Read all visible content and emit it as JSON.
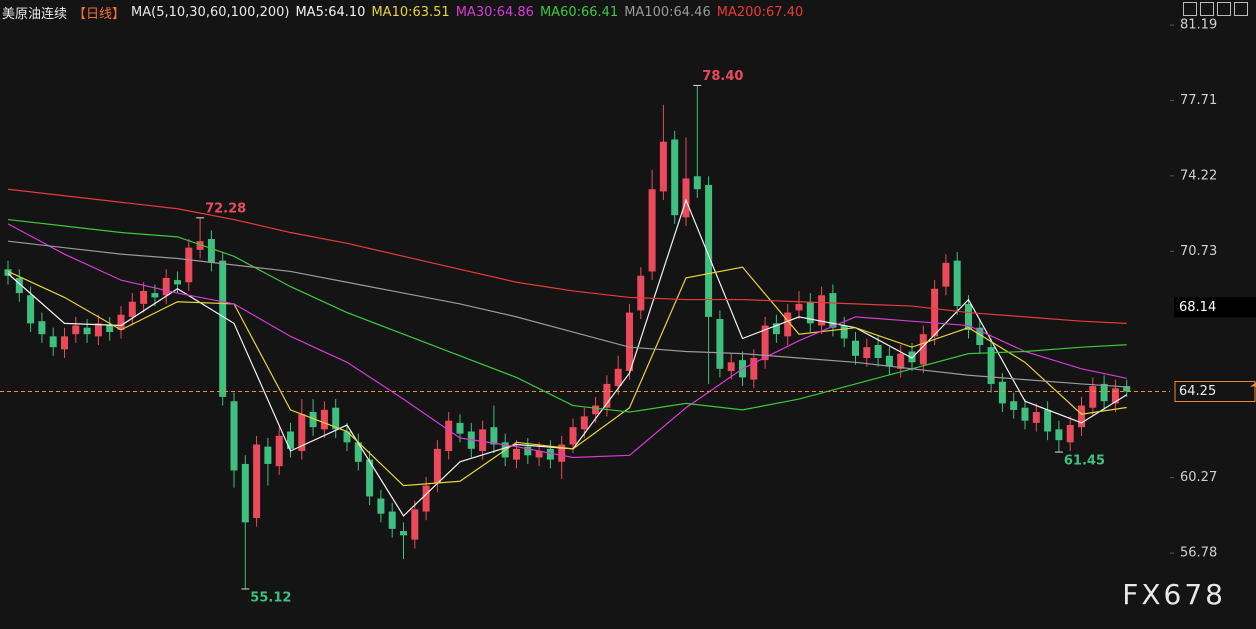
{
  "chart_data": {
    "type": "candlestick",
    "title": "美原油连续",
    "period": "【日线】",
    "indicator": "MA(5,10,30,60,100,200)",
    "watermark": "FX678",
    "up_color": "#ea4a5c",
    "down_color": "#3fbf80",
    "ylim": [
      53.27,
      82.35
    ],
    "yticks": [
      81.19,
      77.71,
      74.22,
      70.73,
      60.27,
      56.78
    ],
    "marker_price": 68.14,
    "last_price": 64.25,
    "last_price_color": "#f08a2a",
    "open": [
      69.9,
      69.5,
      68.7,
      67.5,
      66.8,
      66.2,
      66.9,
      67.2,
      66.8,
      67.3,
      67.1,
      67.7,
      68.3,
      68.8,
      68.7,
      69.4,
      69.3,
      70.8,
      71.3,
      70.3,
      63.8,
      60.9,
      58.4,
      61.7,
      60.8,
      62.4,
      61.5,
      63.3,
      62.5,
      63.5,
      62.4,
      61.9,
      61.1,
      59.3,
      58.7,
      57.8,
      57.4,
      58.7,
      60.0,
      61.5,
      62.8,
      62.4,
      61.5,
      62.6,
      61.9,
      61.1,
      61.7,
      61.2,
      61.6,
      61.0,
      61.8,
      62.5,
      63.2,
      63.5,
      64.5,
      65.2,
      68.0,
      69.8,
      73.5,
      75.9,
      72.3,
      74.2,
      73.8,
      67.6,
      65.2,
      65.7,
      64.8,
      65.7,
      67.4,
      66.8,
      68.0,
      68.4,
      67.3,
      68.8,
      67.3,
      66.6,
      65.8,
      66.4,
      65.9,
      65.3,
      66.1,
      65.5,
      66.8,
      69.1,
      70.3,
      68.3,
      67.2,
      66.3,
      64.7,
      63.8,
      63.5,
      62.8,
      63.4,
      62.5,
      61.9,
      62.6,
      63.5,
      64.6,
      63.7,
      64.5
    ],
    "high": [
      70.3,
      69.9,
      69.1,
      67.9,
      67.2,
      67.2,
      67.7,
      67.6,
      67.8,
      67.7,
      68.2,
      68.8,
      69.3,
      69.2,
      69.9,
      69.8,
      71.3,
      72.28,
      71.7,
      70.7,
      64.2,
      61.3,
      62.2,
      62.1,
      62.6,
      62.8,
      63.9,
      63.9,
      63.8,
      63.9,
      62.8,
      62.3,
      61.5,
      59.7,
      59.1,
      58.2,
      59.2,
      60.3,
      62.0,
      63.3,
      63.2,
      62.8,
      62.9,
      63.6,
      62.3,
      62.0,
      62.1,
      61.9,
      62.0,
      62.2,
      63.0,
      63.5,
      64.0,
      65.0,
      65.9,
      68.3,
      70.0,
      74.5,
      77.5,
      76.3,
      76.0,
      78.4,
      74.2,
      68.0,
      66.0,
      66.1,
      66.2,
      67.7,
      67.8,
      68.3,
      68.9,
      68.8,
      69.1,
      69.2,
      67.7,
      67.0,
      66.7,
      66.8,
      66.3,
      66.4,
      66.5,
      67.3,
      69.4,
      70.6,
      70.7,
      68.7,
      67.6,
      66.7,
      65.1,
      64.2,
      63.9,
      63.7,
      63.8,
      62.9,
      63.1,
      64.0,
      64.9,
      65.0,
      64.8,
      64.8
    ],
    "low": [
      69.2,
      68.4,
      67.0,
      66.5,
      65.9,
      65.8,
      66.5,
      66.5,
      66.4,
      66.6,
      66.7,
      67.3,
      67.9,
      68.2,
      68.3,
      68.8,
      68.9,
      70.4,
      69.8,
      63.6,
      59.8,
      55.12,
      58.0,
      59.9,
      60.4,
      61.2,
      61.1,
      62.2,
      62.1,
      62.1,
      61.5,
      60.6,
      59.0,
      58.2,
      57.5,
      56.5,
      57.0,
      58.3,
      59.6,
      61.1,
      61.9,
      61.2,
      61.1,
      61.4,
      60.8,
      60.7,
      60.9,
      60.8,
      60.7,
      60.2,
      61.4,
      62.1,
      62.8,
      63.1,
      64.1,
      64.8,
      67.6,
      69.4,
      73.1,
      72.0,
      71.9,
      73.2,
      64.6,
      64.9,
      64.8,
      64.5,
      64.4,
      65.3,
      66.5,
      66.4,
      67.6,
      67.0,
      66.9,
      66.8,
      66.3,
      65.5,
      65.4,
      65.4,
      65.0,
      64.9,
      65.2,
      65.1,
      66.4,
      68.7,
      67.8,
      66.7,
      66.0,
      64.2,
      63.3,
      63.0,
      62.5,
      62.4,
      62.0,
      61.45,
      61.5,
      62.2,
      63.1,
      63.4,
      63.3,
      64.0
    ],
    "close": [
      69.6,
      68.8,
      67.4,
      66.9,
      66.3,
      66.8,
      67.3,
      66.9,
      67.4,
      67.0,
      67.8,
      68.4,
      68.9,
      68.6,
      69.5,
      69.2,
      70.9,
      71.2,
      70.2,
      64.0,
      60.6,
      58.2,
      61.8,
      60.9,
      62.2,
      61.6,
      63.2,
      62.6,
      63.4,
      62.5,
      61.9,
      61.0,
      59.4,
      58.6,
      57.9,
      57.6,
      58.8,
      59.9,
      61.6,
      62.9,
      62.3,
      61.6,
      62.5,
      61.8,
      61.2,
      61.6,
      61.3,
      61.5,
      61.1,
      61.8,
      62.6,
      63.1,
      63.6,
      64.6,
      65.3,
      67.9,
      69.6,
      73.6,
      75.8,
      72.4,
      74.1,
      73.6,
      67.7,
      65.3,
      65.6,
      64.9,
      65.8,
      67.3,
      66.9,
      67.9,
      68.3,
      67.4,
      68.7,
      67.2,
      66.7,
      65.9,
      66.3,
      65.8,
      65.4,
      66.0,
      65.6,
      66.9,
      69.0,
      70.2,
      68.2,
      67.1,
      66.4,
      64.6,
      63.7,
      63.4,
      62.9,
      63.3,
      62.4,
      62.0,
      62.7,
      63.6,
      64.5,
      63.8,
      64.4,
      64.25
    ],
    "annotations": [
      {
        "value": 78.4,
        "label": "78.40"
      },
      72.28,
      55.12,
      61.45
    ],
    "lines": [
      {
        "name": "MA5:64.10",
        "color": "#f2f2f2",
        "x": [
          0,
          5,
          10,
          15,
          20,
          25,
          30,
          35,
          40,
          45,
          50,
          55,
          60,
          65,
          70,
          75,
          80,
          85,
          90,
          95,
          99
        ],
        "values": [
          69.7,
          67.4,
          67.3,
          69.0,
          67.4,
          61.5,
          62.7,
          58.5,
          61.0,
          61.8,
          61.6,
          65.1,
          73.1,
          66.7,
          67.7,
          67.2,
          65.8,
          68.5,
          63.8,
          62.8,
          64.1
        ]
      },
      {
        "name": "MA10:63.51",
        "color": "#e6d23c",
        "x": [
          0,
          5,
          10,
          15,
          20,
          25,
          30,
          35,
          40,
          45,
          50,
          55,
          60,
          65,
          70,
          75,
          80,
          85,
          90,
          95,
          99
        ],
        "values": [
          69.8,
          68.6,
          67.1,
          68.4,
          68.3,
          63.4,
          62.4,
          59.9,
          60.1,
          61.9,
          61.6,
          63.5,
          69.5,
          70.0,
          66.9,
          67.2,
          66.3,
          67.2,
          65.6,
          63.2,
          63.51
        ]
      },
      {
        "name": "MA30:64.86",
        "color": "#d63ad6",
        "x": [
          0,
          5,
          10,
          15,
          20,
          25,
          30,
          35,
          40,
          45,
          50,
          55,
          60,
          65,
          70,
          75,
          80,
          85,
          90,
          95,
          99
        ],
        "values": [
          72.0,
          70.6,
          69.4,
          68.8,
          68.3,
          66.8,
          65.6,
          63.9,
          62.1,
          61.7,
          61.2,
          61.3,
          63.5,
          65.3,
          66.6,
          67.7,
          67.5,
          67.3,
          66.1,
          65.3,
          64.86
        ]
      },
      {
        "name": "MA60:66.41",
        "color": "#3cc83c",
        "x": [
          0,
          5,
          10,
          15,
          20,
          25,
          30,
          35,
          40,
          45,
          50,
          55,
          60,
          65,
          70,
          75,
          80,
          85,
          90,
          95,
          99
        ],
        "values": [
          72.2,
          71.9,
          71.6,
          71.4,
          70.5,
          69.1,
          67.9,
          66.9,
          65.9,
          64.9,
          63.6,
          63.3,
          63.7,
          63.4,
          63.9,
          64.6,
          65.3,
          66.0,
          66.1,
          66.3,
          66.41
        ]
      },
      {
        "name": "MA100:64.46",
        "color": "#9a9a9a",
        "x": [
          0,
          5,
          10,
          15,
          20,
          25,
          30,
          35,
          40,
          45,
          50,
          55,
          60,
          65,
          70,
          75,
          80,
          85,
          90,
          95,
          99
        ],
        "values": [
          71.2,
          70.9,
          70.6,
          70.4,
          70.1,
          69.8,
          69.3,
          68.8,
          68.3,
          67.7,
          67.0,
          66.3,
          66.1,
          66.0,
          65.8,
          65.6,
          65.3,
          65.0,
          64.8,
          64.6,
          64.46
        ]
      },
      {
        "name": "MA200:67.40",
        "color": "#e83a3a",
        "x": [
          0,
          5,
          10,
          15,
          20,
          25,
          30,
          35,
          40,
          45,
          50,
          55,
          60,
          65,
          70,
          75,
          80,
          85,
          90,
          95,
          99
        ],
        "values": [
          73.6,
          73.3,
          73.0,
          72.7,
          72.2,
          71.6,
          71.1,
          70.5,
          69.9,
          69.3,
          68.9,
          68.6,
          68.5,
          68.5,
          68.4,
          68.3,
          68.2,
          67.9,
          67.7,
          67.5,
          67.4
        ]
      }
    ]
  }
}
